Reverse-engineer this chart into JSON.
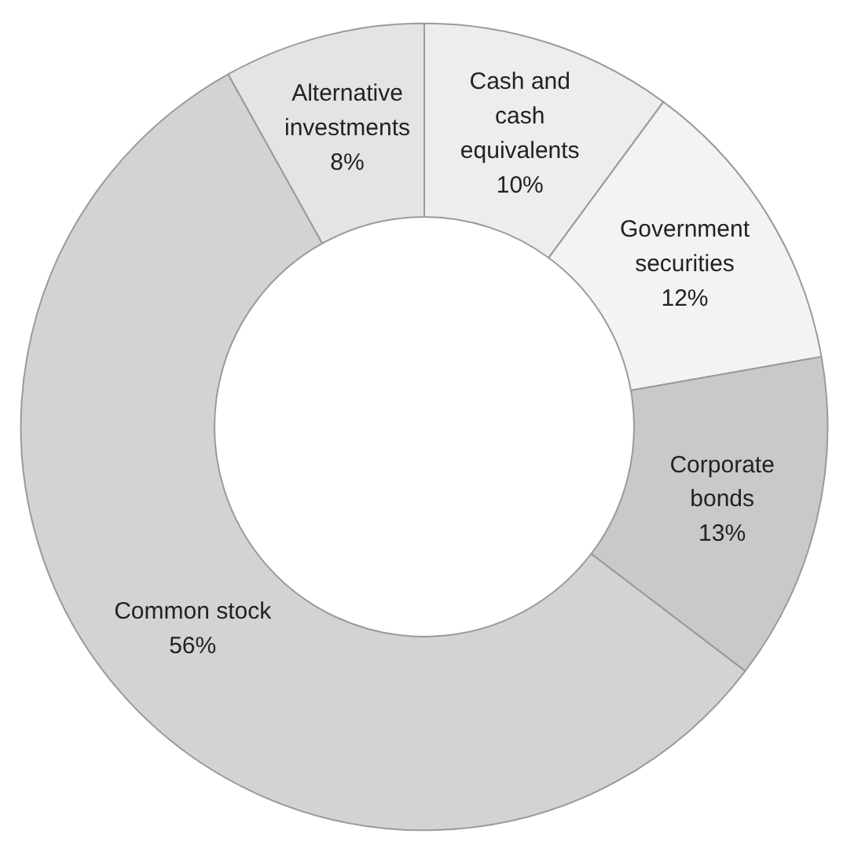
{
  "chart_data": {
    "type": "donut",
    "categories": [
      "Cash and cash equivalents",
      "Government securities",
      "Corporate bonds",
      "Common stock",
      "Alternative investments"
    ],
    "values": [
      10,
      12,
      13,
      56,
      8
    ],
    "colors": [
      "#ededed",
      "#f3f3f3",
      "#c9c9c9",
      "#d3d3d3",
      "#e4e4e4"
    ],
    "value_labels": [
      "10%",
      "12%",
      "13%",
      "56%",
      "8%"
    ]
  }
}
